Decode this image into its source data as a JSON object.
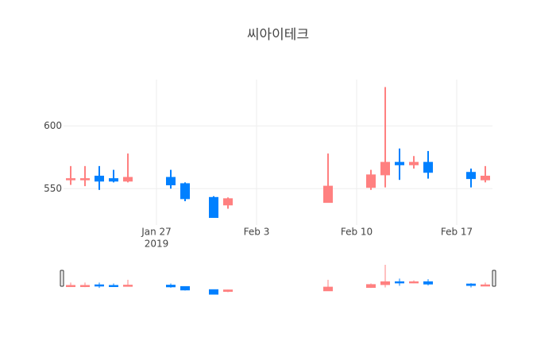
{
  "chart_data": {
    "type": "candlestick",
    "title": "씨아이테크",
    "x": [
      "2019-01-21",
      "2019-01-22",
      "2019-01-23",
      "2019-01-24",
      "2019-01-25",
      "2019-01-28",
      "2019-01-29",
      "2019-01-31",
      "2019-02-01",
      "2019-02-08",
      "2019-02-11",
      "2019-02-12",
      "2019-02-13",
      "2019-02-14",
      "2019-02-15",
      "2019-02-18",
      "2019-02-19"
    ],
    "open": [
      557,
      557,
      560,
      558,
      556,
      559,
      554,
      543,
      537,
      539,
      551,
      561,
      571,
      569,
      571,
      563,
      557
    ],
    "high": [
      568,
      568,
      568,
      565,
      578,
      565,
      555,
      544,
      543,
      578,
      565,
      631,
      582,
      576,
      580,
      566,
      568
    ],
    "low": [
      553,
      552,
      549,
      555,
      555,
      550,
      540,
      527,
      534,
      539,
      549,
      551,
      557,
      566,
      558,
      551,
      555
    ],
    "close": [
      558,
      558,
      556,
      556,
      559,
      553,
      542,
      527,
      542,
      552,
      561,
      571,
      569,
      571,
      563,
      558,
      560
    ],
    "increasing_color": "#ff8080",
    "decreasing_color": "#0080ff",
    "xlim": [
      "2019-01-20T12:00",
      "2019-02-19T12:00"
    ],
    "xticks": [
      {
        "value": "2019-01-27",
        "label": "Jan 27"
      },
      {
        "value": "2019-02-03",
        "label": "Feb 3"
      },
      {
        "value": "2019-02-10",
        "label": "Feb 10"
      },
      {
        "value": "2019-02-17",
        "label": "Feb 17"
      }
    ],
    "year": "2019",
    "ylim": [
      521,
      637
    ],
    "yticks": [
      550,
      600
    ],
    "grid": true,
    "rangeslider": true
  }
}
